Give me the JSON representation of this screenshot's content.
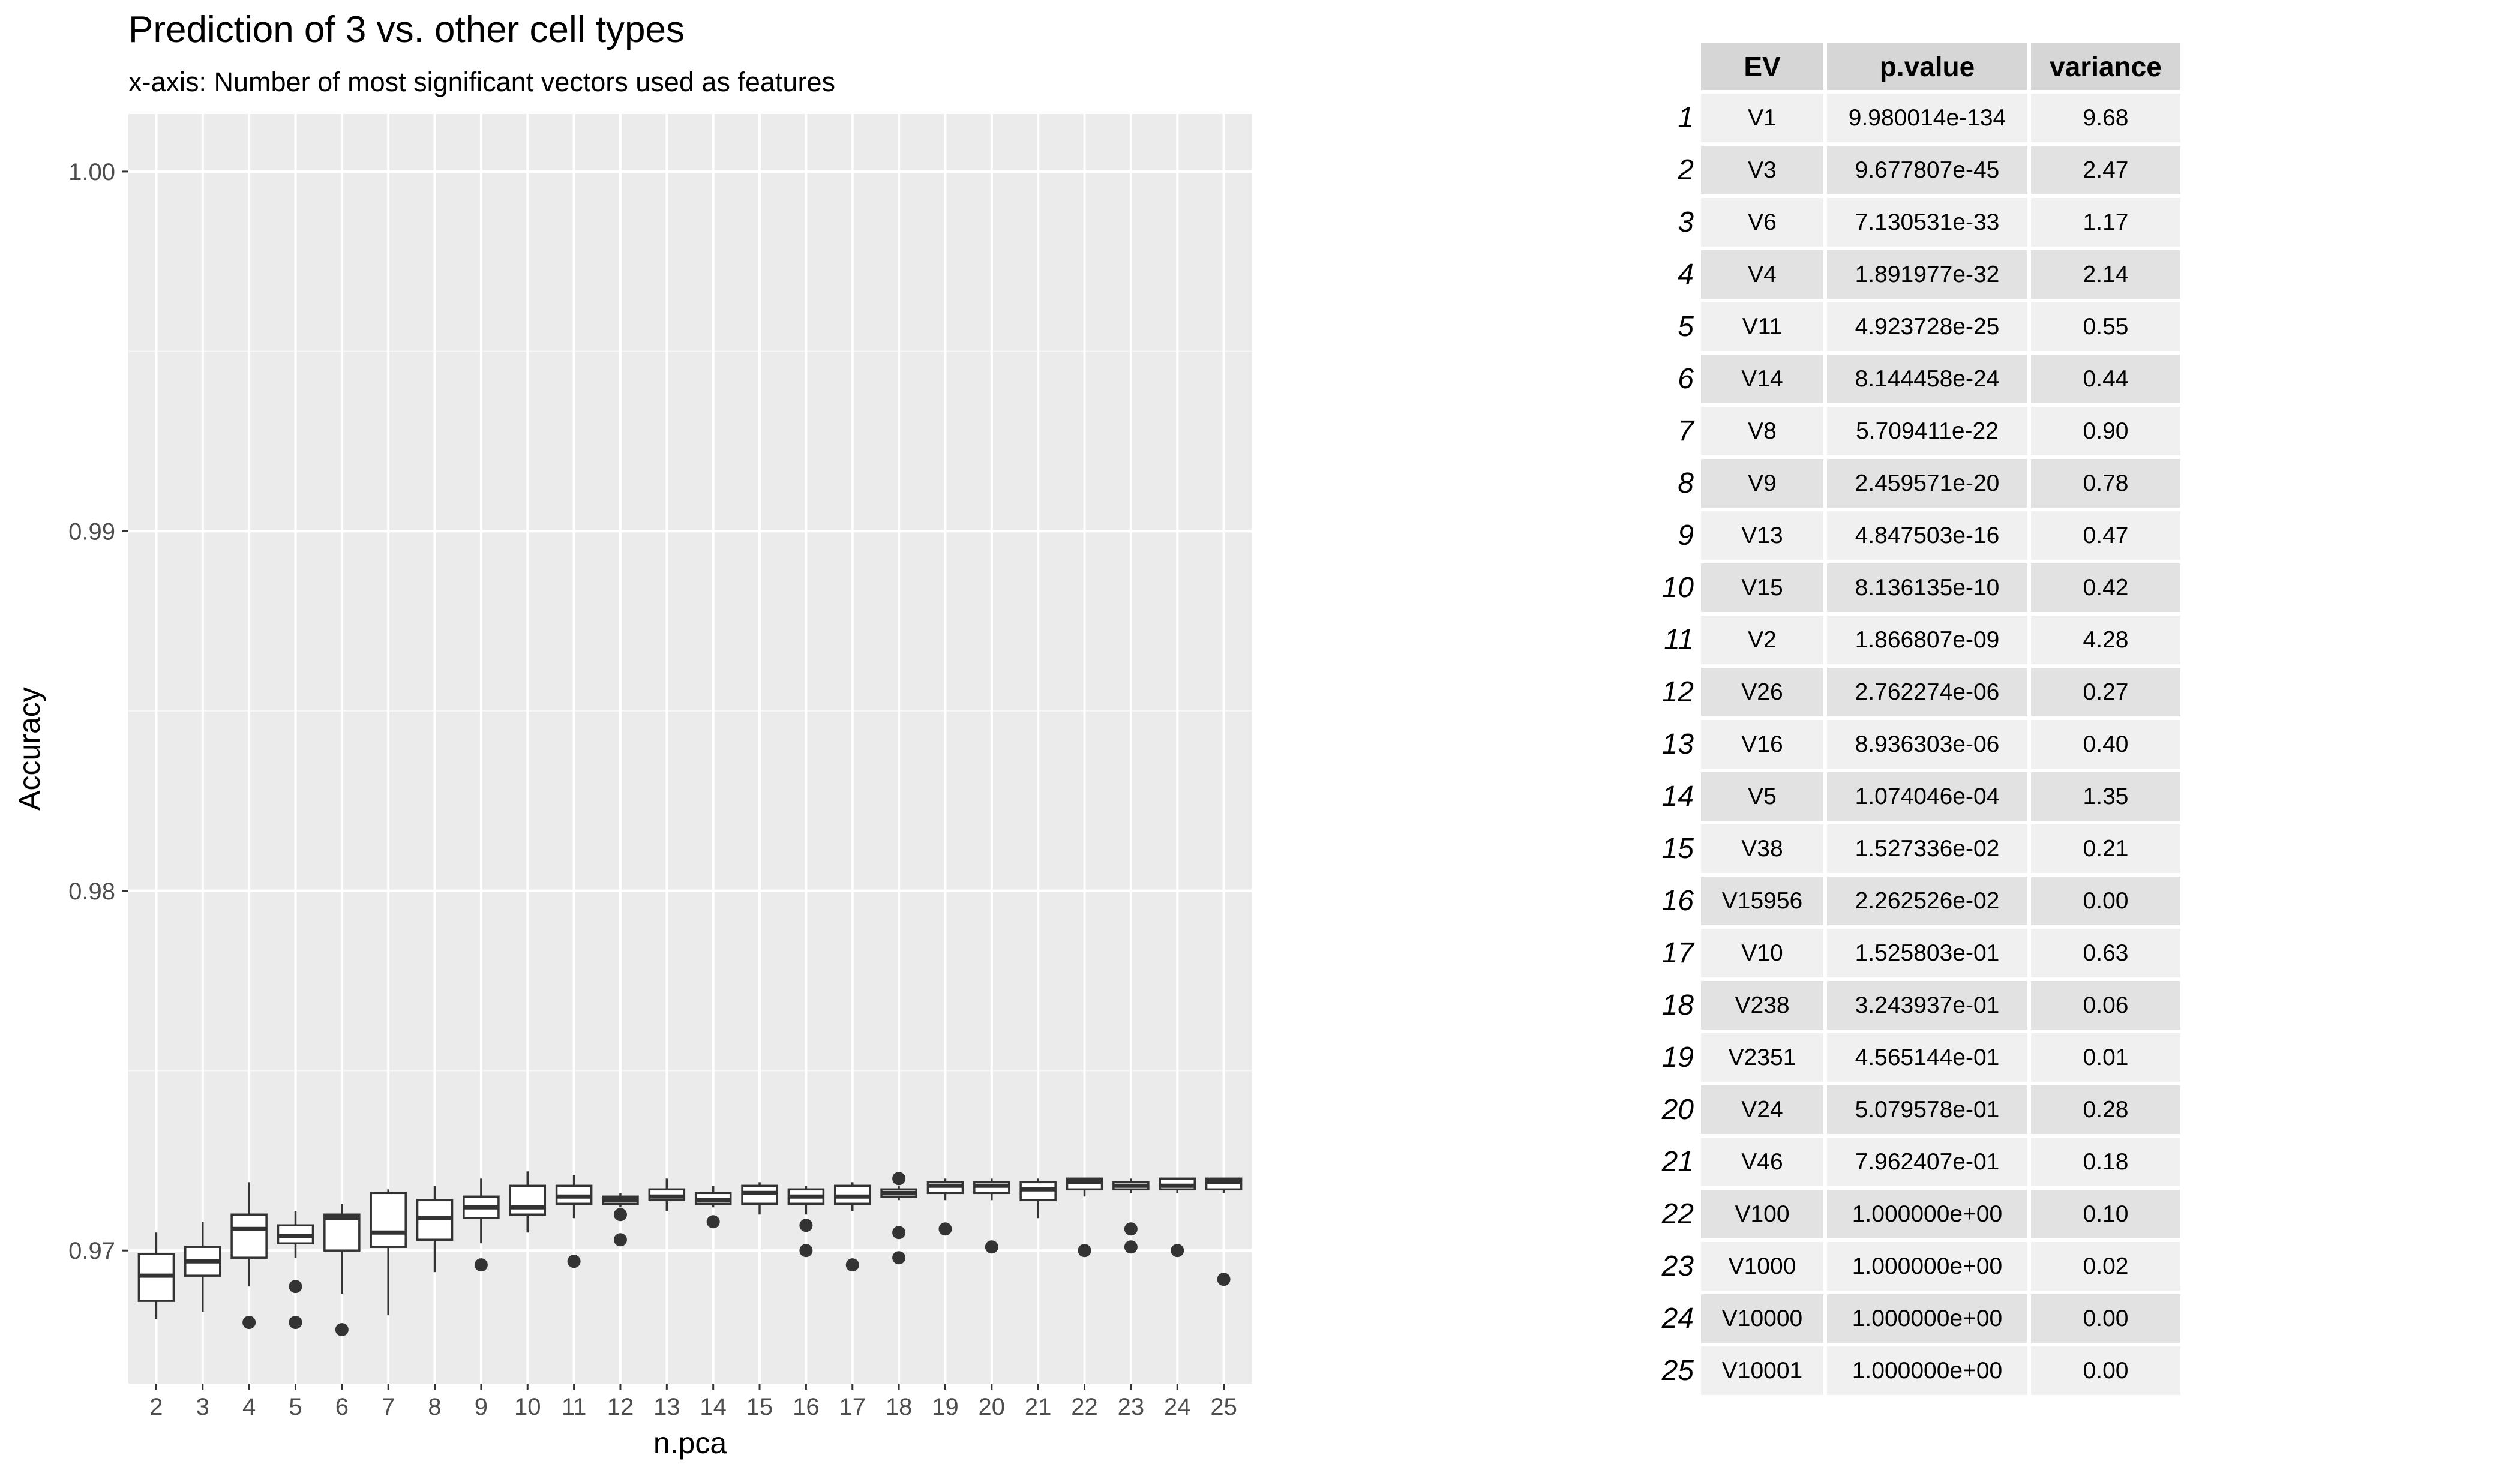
{
  "chart_data": {
    "type": "box",
    "title": "Prediction of 3 vs. other cell types",
    "subtitle": "x-axis: Number of most significant vectors used as features",
    "xlabel": "n.pca",
    "ylabel": "Accuracy",
    "ylim": [
      0.9663,
      1.0016
    ],
    "y_ticks": [
      0.97,
      0.98,
      0.99,
      1.0
    ],
    "y_tick_labels": [
      "0.97",
      "0.98",
      "0.99",
      "1.00"
    ],
    "grid": true,
    "categories": [
      "2",
      "3",
      "4",
      "5",
      "6",
      "7",
      "8",
      "9",
      "10",
      "11",
      "12",
      "13",
      "14",
      "15",
      "16",
      "17",
      "18",
      "19",
      "20",
      "21",
      "22",
      "23",
      "24",
      "25"
    ],
    "boxes": [
      {
        "x": "2",
        "min": 0.9681,
        "q1": 0.9686,
        "median": 0.9693,
        "q3": 0.9699,
        "max": 0.9705,
        "outliers": []
      },
      {
        "x": "3",
        "min": 0.9683,
        "q1": 0.9693,
        "median": 0.9697,
        "q3": 0.9701,
        "max": 0.9708,
        "outliers": []
      },
      {
        "x": "4",
        "min": 0.969,
        "q1": 0.9698,
        "median": 0.9706,
        "q3": 0.971,
        "max": 0.9719,
        "outliers": [
          0.968
        ]
      },
      {
        "x": "5",
        "min": 0.9698,
        "q1": 0.9702,
        "median": 0.9704,
        "q3": 0.9707,
        "max": 0.9711,
        "outliers": [
          0.969,
          0.968
        ]
      },
      {
        "x": "6",
        "min": 0.9688,
        "q1": 0.97,
        "median": 0.9709,
        "q3": 0.971,
        "max": 0.9713,
        "outliers": [
          0.9678
        ]
      },
      {
        "x": "7",
        "min": 0.9682,
        "q1": 0.9701,
        "median": 0.9705,
        "q3": 0.9716,
        "max": 0.9717,
        "outliers": []
      },
      {
        "x": "8",
        "min": 0.9694,
        "q1": 0.9703,
        "median": 0.9709,
        "q3": 0.9714,
        "max": 0.9718,
        "outliers": []
      },
      {
        "x": "9",
        "min": 0.9702,
        "q1": 0.9709,
        "median": 0.9712,
        "q3": 0.9715,
        "max": 0.972,
        "outliers": [
          0.9696
        ]
      },
      {
        "x": "10",
        "min": 0.9705,
        "q1": 0.971,
        "median": 0.9712,
        "q3": 0.9718,
        "max": 0.9722,
        "outliers": []
      },
      {
        "x": "11",
        "min": 0.9709,
        "q1": 0.9713,
        "median": 0.9715,
        "q3": 0.9718,
        "max": 0.9721,
        "outliers": [
          0.9697
        ]
      },
      {
        "x": "12",
        "min": 0.9712,
        "q1": 0.9713,
        "median": 0.9714,
        "q3": 0.9715,
        "max": 0.9716,
        "outliers": [
          0.971,
          0.9703
        ]
      },
      {
        "x": "13",
        "min": 0.9711,
        "q1": 0.9714,
        "median": 0.9715,
        "q3": 0.9717,
        "max": 0.972,
        "outliers": []
      },
      {
        "x": "14",
        "min": 0.9712,
        "q1": 0.9713,
        "median": 0.9714,
        "q3": 0.9716,
        "max": 0.9718,
        "outliers": [
          0.9708
        ]
      },
      {
        "x": "15",
        "min": 0.971,
        "q1": 0.9713,
        "median": 0.9716,
        "q3": 0.9718,
        "max": 0.9719,
        "outliers": []
      },
      {
        "x": "16",
        "min": 0.971,
        "q1": 0.9713,
        "median": 0.9715,
        "q3": 0.9717,
        "max": 0.9718,
        "outliers": [
          0.9707,
          0.97
        ]
      },
      {
        "x": "17",
        "min": 0.9711,
        "q1": 0.9713,
        "median": 0.9715,
        "q3": 0.9718,
        "max": 0.9719,
        "outliers": [
          0.9696
        ]
      },
      {
        "x": "18",
        "min": 0.9714,
        "q1": 0.9715,
        "median": 0.9716,
        "q3": 0.9717,
        "max": 0.9718,
        "outliers": [
          0.972,
          0.9705,
          0.9698
        ]
      },
      {
        "x": "19",
        "min": 0.9714,
        "q1": 0.9716,
        "median": 0.9718,
        "q3": 0.9719,
        "max": 0.972,
        "outliers": [
          0.9706
        ]
      },
      {
        "x": "20",
        "min": 0.9714,
        "q1": 0.9716,
        "median": 0.9718,
        "q3": 0.9719,
        "max": 0.972,
        "outliers": [
          0.9701
        ]
      },
      {
        "x": "21",
        "min": 0.9709,
        "q1": 0.9714,
        "median": 0.9717,
        "q3": 0.9719,
        "max": 0.972,
        "outliers": []
      },
      {
        "x": "22",
        "min": 0.9715,
        "q1": 0.9717,
        "median": 0.9719,
        "q3": 0.972,
        "max": 0.972,
        "outliers": [
          0.97
        ]
      },
      {
        "x": "23",
        "min": 0.9716,
        "q1": 0.9717,
        "median": 0.9718,
        "q3": 0.9719,
        "max": 0.972,
        "outliers": [
          0.9706,
          0.9701
        ]
      },
      {
        "x": "24",
        "min": 0.9716,
        "q1": 0.9717,
        "median": 0.9718,
        "q3": 0.972,
        "max": 0.972,
        "outliers": [
          0.97
        ]
      },
      {
        "x": "25",
        "min": 0.9716,
        "q1": 0.9717,
        "median": 0.9719,
        "q3": 0.972,
        "max": 0.972,
        "outliers": [
          0.9692
        ]
      }
    ]
  },
  "table": {
    "headers": {
      "ev": "EV",
      "pvalue": "p.value",
      "variance": "variance"
    },
    "rows": [
      {
        "n": "1",
        "ev": "V1",
        "p": "9.980014e-134",
        "v": "9.68"
      },
      {
        "n": "2",
        "ev": "V3",
        "p": "9.677807e-45",
        "v": "2.47"
      },
      {
        "n": "3",
        "ev": "V6",
        "p": "7.130531e-33",
        "v": "1.17"
      },
      {
        "n": "4",
        "ev": "V4",
        "p": "1.891977e-32",
        "v": "2.14"
      },
      {
        "n": "5",
        "ev": "V11",
        "p": "4.923728e-25",
        "v": "0.55"
      },
      {
        "n": "6",
        "ev": "V14",
        "p": "8.144458e-24",
        "v": "0.44"
      },
      {
        "n": "7",
        "ev": "V8",
        "p": "5.709411e-22",
        "v": "0.90"
      },
      {
        "n": "8",
        "ev": "V9",
        "p": "2.459571e-20",
        "v": "0.78"
      },
      {
        "n": "9",
        "ev": "V13",
        "p": "4.847503e-16",
        "v": "0.47"
      },
      {
        "n": "10",
        "ev": "V15",
        "p": "8.136135e-10",
        "v": "0.42"
      },
      {
        "n": "11",
        "ev": "V2",
        "p": "1.866807e-09",
        "v": "4.28"
      },
      {
        "n": "12",
        "ev": "V26",
        "p": "2.762274e-06",
        "v": "0.27"
      },
      {
        "n": "13",
        "ev": "V16",
        "p": "8.936303e-06",
        "v": "0.40"
      },
      {
        "n": "14",
        "ev": "V5",
        "p": "1.074046e-04",
        "v": "1.35"
      },
      {
        "n": "15",
        "ev": "V38",
        "p": "1.527336e-02",
        "v": "0.21"
      },
      {
        "n": "16",
        "ev": "V15956",
        "p": "2.262526e-02",
        "v": "0.00"
      },
      {
        "n": "17",
        "ev": "V10",
        "p": "1.525803e-01",
        "v": "0.63"
      },
      {
        "n": "18",
        "ev": "V238",
        "p": "3.243937e-01",
        "v": "0.06"
      },
      {
        "n": "19",
        "ev": "V2351",
        "p": "4.565144e-01",
        "v": "0.01"
      },
      {
        "n": "20",
        "ev": "V24",
        "p": "5.079578e-01",
        "v": "0.28"
      },
      {
        "n": "21",
        "ev": "V46",
        "p": "7.962407e-01",
        "v": "0.18"
      },
      {
        "n": "22",
        "ev": "V100",
        "p": "1.000000e+00",
        "v": "0.10"
      },
      {
        "n": "23",
        "ev": "V1000",
        "p": "1.000000e+00",
        "v": "0.02"
      },
      {
        "n": "24",
        "ev": "V10000",
        "p": "1.000000e+00",
        "v": "0.00"
      },
      {
        "n": "25",
        "ev": "V10001",
        "p": "1.000000e+00",
        "v": "0.00"
      }
    ]
  }
}
